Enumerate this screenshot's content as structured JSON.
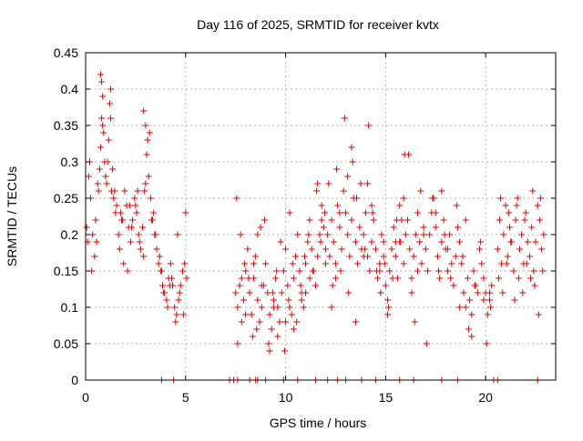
{
  "chart_data": {
    "type": "scatter",
    "title": "Day 116 of 2025, SRMTID for receiver kvtx",
    "xlabel": "GPS time / hours",
    "ylabel": "SRMTID / TECUs",
    "xlim": [
      0,
      23.5
    ],
    "ylim": [
      0,
      0.45
    ],
    "x_ticks": [
      0,
      5,
      10,
      15,
      20
    ],
    "y_ticks": [
      0,
      0.05,
      0.1,
      0.15,
      0.2,
      0.25,
      0.3,
      0.35,
      0.4,
      0.45
    ],
    "x_tick_labels": [
      "0",
      "5",
      "10",
      "15",
      "20"
    ],
    "y_tick_labels": [
      "0",
      "0.05",
      "0.1",
      "0.15",
      "0.2",
      "0.25",
      "0.3",
      "0.35",
      "0.4",
      "0.45"
    ],
    "grid": true,
    "marker": "+",
    "marker_color": "#e00000",
    "series": [
      {
        "name": "SRMTID",
        "x": [
          0.05,
          0.15,
          0.25,
          0.35,
          0.45,
          0.55,
          0.65,
          0.75,
          0.85,
          0.95,
          1.05,
          1.15,
          1.25,
          1.35,
          1.45,
          1.55,
          1.65,
          1.75,
          1.85,
          1.95,
          2.05,
          2.15,
          2.25,
          2.35,
          2.45,
          2.55,
          2.65,
          2.75,
          2.85,
          2.95,
          3.05,
          3.15,
          3.25,
          3.35,
          3.45,
          3.55,
          3.65,
          3.75,
          3.85,
          3.95,
          4.05,
          4.15,
          4.25,
          4.35,
          4.45,
          4.55,
          4.65,
          4.75,
          4.85,
          4.95,
          5.05,
          0.1,
          0.3,
          0.5,
          0.7,
          0.8,
          0.9,
          1.1,
          1.3,
          1.5,
          1.7,
          1.9,
          2.1,
          2.3,
          2.5,
          2.7,
          2.9,
          3.0,
          3.1,
          3.3,
          3.5,
          3.7,
          3.9,
          4.1,
          4.3,
          4.5,
          4.7,
          4.9,
          0.75,
          0.8,
          0.85,
          1.2,
          1.25,
          2.9,
          3.0,
          3.2,
          0.2,
          0.6,
          1.0,
          1.4,
          1.8,
          2.2,
          2.6,
          3.4,
          3.8,
          4.2,
          4.6,
          5.0,
          7.5,
          7.6,
          7.7,
          7.8,
          7.9,
          8.0,
          8.1,
          8.2,
          8.3,
          8.4,
          8.5,
          8.6,
          8.7,
          8.8,
          8.9,
          9.0,
          9.1,
          9.2,
          9.3,
          9.4,
          9.5,
          9.6,
          9.7,
          9.8,
          9.9,
          10.0,
          10.1,
          10.2,
          10.3,
          10.4,
          10.5,
          10.6,
          10.7,
          10.8,
          10.9,
          11.0,
          11.1,
          11.2,
          11.3,
          11.4,
          11.5,
          11.6,
          11.7,
          11.8,
          11.9,
          12.0,
          7.55,
          7.75,
          7.95,
          8.15,
          8.35,
          8.55,
          8.75,
          8.95,
          9.15,
          9.35,
          9.55,
          9.75,
          9.95,
          10.15,
          10.35,
          10.55,
          10.75,
          10.95,
          11.15,
          11.35,
          11.55,
          11.75,
          11.95,
          7.6,
          8.0,
          8.4,
          8.8,
          9.2,
          9.6,
          10.0,
          10.4,
          10.8,
          11.2,
          11.6,
          12.0,
          7.8,
          8.6,
          9.4,
          10.2,
          11.0,
          11.8,
          12.1,
          12.2,
          12.3,
          12.4,
          12.5,
          12.6,
          12.7,
          12.8,
          12.9,
          13.0,
          13.1,
          13.2,
          13.3,
          13.4,
          13.5,
          13.6,
          13.7,
          13.8,
          13.9,
          14.0,
          14.1,
          14.2,
          14.3,
          14.4,
          14.5,
          14.6,
          14.7,
          14.8,
          14.9,
          15.0,
          15.1,
          15.2,
          15.3,
          15.4,
          15.5,
          15.6,
          15.7,
          15.8,
          15.9,
          16.0,
          12.15,
          12.35,
          12.55,
          12.75,
          12.95,
          13.15,
          13.35,
          13.55,
          13.75,
          13.95,
          14.15,
          14.35,
          14.55,
          14.75,
          14.95,
          15.15,
          15.35,
          15.55,
          15.75,
          15.95,
          12.3,
          12.7,
          13.1,
          13.5,
          13.9,
          14.3,
          14.7,
          15.1,
          15.5,
          15.9,
          12.5,
          13.3,
          14.1,
          14.9,
          15.7,
          16.1,
          16.2,
          16.3,
          16.4,
          16.5,
          16.6,
          16.7,
          16.8,
          16.9,
          17.0,
          17.1,
          17.2,
          17.3,
          17.4,
          17.5,
          17.6,
          17.7,
          17.8,
          17.9,
          18.0,
          18.1,
          18.2,
          18.3,
          18.4,
          18.5,
          18.6,
          18.7,
          18.8,
          18.9,
          19.0,
          19.1,
          19.2,
          19.3,
          19.4,
          19.5,
          19.6,
          19.7,
          19.8,
          19.9,
          20.0,
          20.1,
          20.2,
          20.3,
          16.15,
          16.45,
          16.75,
          17.05,
          17.35,
          17.65,
          17.95,
          18.25,
          18.55,
          18.85,
          19.15,
          19.45,
          19.75,
          20.05,
          20.25,
          16.3,
          16.9,
          17.5,
          18.1,
          18.7,
          19.3,
          19.9,
          16.6,
          17.8,
          19.0,
          20.2,
          20.6,
          20.7,
          20.8,
          20.9,
          21.0,
          21.1,
          21.2,
          21.3,
          21.4,
          21.5,
          21.6,
          21.7,
          21.8,
          21.9,
          22.0,
          22.1,
          22.2,
          22.3,
          22.4,
          22.5,
          22.6,
          22.7,
          22.8,
          22.9,
          20.65,
          20.85,
          21.05,
          21.25,
          21.45,
          21.65,
          21.85,
          22.05,
          22.25,
          22.45,
          22.65,
          22.85,
          20.75,
          21.15,
          21.55,
          21.95,
          22.35,
          22.75,
          3.8,
          4.4,
          7.2,
          7.4,
          7.6,
          8.2,
          8.5,
          8.6,
          9.0,
          9.9,
          10.6,
          11.5,
          12.1,
          12.6,
          13.0,
          13.8,
          14.5,
          15.7,
          16.4,
          17.8,
          18.6,
          20.4,
          20.6,
          22.6
        ],
        "y": [
          0.21,
          0.28,
          0.25,
          0.2,
          0.17,
          0.19,
          0.26,
          0.32,
          0.35,
          0.3,
          0.27,
          0.33,
          0.36,
          0.29,
          0.26,
          0.24,
          0.2,
          0.23,
          0.22,
          0.26,
          0.24,
          0.21,
          0.19,
          0.22,
          0.25,
          0.23,
          0.2,
          0.18,
          0.21,
          0.26,
          0.31,
          0.28,
          0.25,
          0.22,
          0.2,
          0.18,
          0.16,
          0.15,
          0.13,
          0.12,
          0.11,
          0.14,
          0.16,
          0.13,
          0.1,
          0.09,
          0.11,
          0.13,
          0.15,
          0.16,
          0.14,
          0.19,
          0.15,
          0.22,
          0.29,
          0.36,
          0.34,
          0.3,
          0.26,
          0.23,
          0.18,
          0.16,
          0.15,
          0.21,
          0.24,
          0.19,
          0.17,
          0.27,
          0.33,
          0.22,
          0.2,
          0.17,
          0.12,
          0.1,
          0.14,
          0.08,
          0.12,
          0.09,
          0.42,
          0.41,
          0.39,
          0.38,
          0.4,
          0.37,
          0.35,
          0.34,
          0.3,
          0.27,
          0.28,
          0.25,
          0.22,
          0.24,
          0.26,
          0.23,
          0.15,
          0.13,
          0.2,
          0.23,
          0.12,
          0.1,
          0.13,
          0.08,
          0.11,
          0.15,
          0.18,
          0.12,
          0.09,
          0.14,
          0.17,
          0.11,
          0.08,
          0.1,
          0.13,
          0.16,
          0.12,
          0.09,
          0.07,
          0.11,
          0.14,
          0.1,
          0.08,
          0.12,
          0.15,
          0.18,
          0.13,
          0.1,
          0.09,
          0.14,
          0.17,
          0.2,
          0.15,
          0.12,
          0.1,
          0.16,
          0.19,
          0.22,
          0.18,
          0.15,
          0.13,
          0.17,
          0.2,
          0.24,
          0.21,
          0.18,
          0.25,
          0.2,
          0.16,
          0.14,
          0.06,
          0.07,
          0.21,
          0.22,
          0.05,
          0.12,
          0.15,
          0.19,
          0.04,
          0.11,
          0.16,
          0.08,
          0.13,
          0.17,
          0.2,
          0.15,
          0.26,
          0.19,
          0.23,
          0.05,
          0.09,
          0.16,
          0.13,
          0.04,
          0.06,
          0.08,
          0.07,
          0.11,
          0.14,
          0.27,
          0.16,
          0.14,
          0.2,
          0.1,
          0.23,
          0.12,
          0.22,
          0.2,
          0.17,
          0.22,
          0.19,
          0.16,
          0.24,
          0.21,
          0.18,
          0.26,
          0.23,
          0.2,
          0.17,
          0.22,
          0.25,
          0.19,
          0.16,
          0.21,
          0.18,
          0.2,
          0.23,
          0.17,
          0.15,
          0.19,
          0.22,
          0.18,
          0.14,
          0.16,
          0.2,
          0.17,
          0.13,
          0.11,
          0.15,
          0.18,
          0.21,
          0.17,
          0.14,
          0.19,
          0.22,
          0.25,
          0.2,
          0.27,
          0.13,
          0.29,
          0.15,
          0.36,
          0.12,
          0.3,
          0.25,
          0.27,
          0.18,
          0.35,
          0.23,
          0.15,
          0.12,
          0.16,
          0.1,
          0.14,
          0.22,
          0.19,
          0.31,
          0.1,
          0.23,
          0.28,
          0.08,
          0.17,
          0.24,
          0.15,
          0.09,
          0.19,
          0.16,
          0.14,
          0.32,
          0.27,
          0.19,
          0.24,
          0.22,
          0.18,
          0.14,
          0.17,
          0.2,
          0.23,
          0.19,
          0.16,
          0.21,
          0.18,
          0.15,
          0.2,
          0.23,
          0.25,
          0.21,
          0.17,
          0.14,
          0.19,
          0.22,
          0.18,
          0.15,
          0.2,
          0.16,
          0.13,
          0.17,
          0.21,
          0.19,
          0.16,
          0.12,
          0.1,
          0.14,
          0.11,
          0.09,
          0.15,
          0.13,
          0.12,
          0.18,
          0.16,
          0.14,
          0.12,
          0.09,
          0.11,
          0.13,
          0.31,
          0.08,
          0.26,
          0.05,
          0.25,
          0.15,
          0.2,
          0.14,
          0.24,
          0.17,
          0.07,
          0.13,
          0.19,
          0.05,
          0.1,
          0.12,
          0.2,
          0.23,
          0.18,
          0.1,
          0.06,
          0.11,
          0.15,
          0.26,
          0.22,
          0.12,
          0.18,
          0.22,
          0.16,
          0.2,
          0.24,
          0.17,
          0.21,
          0.19,
          0.15,
          0.22,
          0.25,
          0.18,
          0.2,
          0.16,
          0.23,
          0.19,
          0.17,
          0.21,
          0.15,
          0.19,
          0.24,
          0.22,
          0.18,
          0.2,
          0.14,
          0.12,
          0.16,
          0.19,
          0.11,
          0.14,
          0.12,
          0.16,
          0.14,
          0.13,
          0.09,
          0.15,
          0.25,
          0.23,
          0.24,
          0.22,
          0.26,
          0.25,
          0,
          0,
          0,
          0,
          0,
          0,
          0,
          0,
          0,
          0,
          0,
          0,
          0,
          0,
          0,
          0,
          0,
          0,
          0,
          0,
          0,
          0,
          0,
          0
        ]
      }
    ]
  }
}
